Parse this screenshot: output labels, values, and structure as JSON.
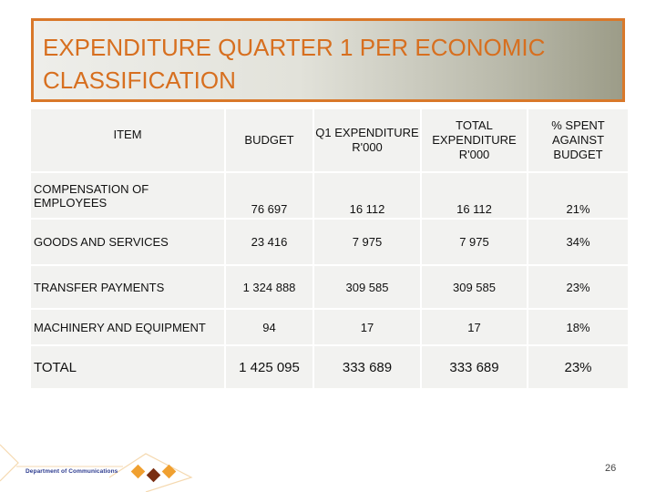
{
  "slide": {
    "title": "EXPENDITURE QUARTER 1 PER ECONOMIC CLASSIFICATION",
    "page_number": "26",
    "footer_text": "Department of Communications"
  },
  "table": {
    "headers": {
      "item": "ITEM",
      "budget": "BUDGET",
      "q1": "Q1 EXPENDITURE R'000",
      "total": "TOTAL EXPENDITURE R'000",
      "pct": "% SPENT AGAINST BUDGET"
    },
    "rows": [
      {
        "item": "COMPENSATION OF EMPLOYEES",
        "budget": "76 697",
        "q1": "16 112",
        "total": "16 112",
        "pct": "21%"
      },
      {
        "item": "GOODS AND SERVICES",
        "budget": "23 416",
        "q1": "7 975",
        "total": "7 975",
        "pct": "34%"
      },
      {
        "item": "TRANSFER PAYMENTS",
        "budget": "1 324 888",
        "q1": "309 585",
        "total": "309 585",
        "pct": "23%"
      },
      {
        "item": "MACHINERY AND EQUIPMENT",
        "budget": "94",
        "q1": "17",
        "total": "17",
        "pct": "18%"
      },
      {
        "item": "TOTAL",
        "budget": "1 425 095",
        "q1": "333 689",
        "total": "333 689",
        "pct": "23%"
      }
    ]
  },
  "colors": {
    "title": "#d76f1f",
    "title_border": "#d9782a",
    "cell_background": "#f2f2f0",
    "logo_orange": "#f0a030",
    "logo_brown": "#7a2e12",
    "footer_text": "#2b3a8f"
  }
}
